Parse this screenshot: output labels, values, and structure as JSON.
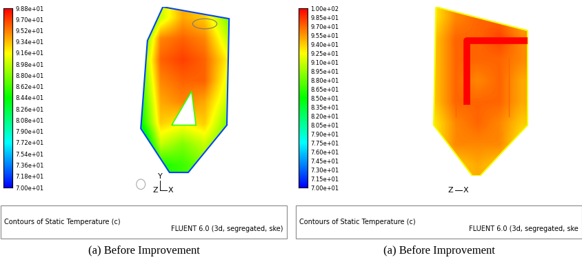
{
  "chart_data": [
    {
      "type": "contour",
      "caption": "(a) Before Improvement",
      "title": "Contours of Static Temperature (c)",
      "solver": "FLUENT 6.0 (3d, segregated, ske)",
      "triad": {
        "up": "Y",
        "out": "Z",
        "right": "X"
      },
      "colorbar": {
        "range": [
          70,
          98.8
        ],
        "ticks": [
          {
            "value": 98.8,
            "label": "9.88e+01"
          },
          {
            "value": 97.0,
            "label": "9.70e+01"
          },
          {
            "value": 95.2,
            "label": "9.52e+01"
          },
          {
            "value": 93.4,
            "label": "9.34e+01"
          },
          {
            "value": 91.6,
            "label": "9.16e+01"
          },
          {
            "value": 89.8,
            "label": "8.98e+01"
          },
          {
            "value": 88.0,
            "label": "8.80e+01"
          },
          {
            "value": 86.2,
            "label": "8.62e+01"
          },
          {
            "value": 84.4,
            "label": "8.44e+01"
          },
          {
            "value": 82.6,
            "label": "8.26e+01"
          },
          {
            "value": 80.8,
            "label": "8.08e+01"
          },
          {
            "value": 79.0,
            "label": "7.90e+01"
          },
          {
            "value": 77.2,
            "label": "7.72e+01"
          },
          {
            "value": 75.4,
            "label": "7.54e+01"
          },
          {
            "value": 73.6,
            "label": "7.36e+01"
          },
          {
            "value": 71.8,
            "label": "7.18e+01"
          },
          {
            "value": 70,
            "label": "7.00e+01"
          }
        ]
      },
      "cells": [
        [
          80,
          90,
          94,
          93,
          88
        ],
        [
          84,
          95,
          96,
          95,
          90
        ],
        [
          86,
          96,
          97,
          96,
          92
        ],
        [
          85,
          95,
          96,
          96,
          91
        ],
        [
          84,
          94,
          95,
          94,
          90
        ],
        [
          83,
          93,
          92,
          93,
          88
        ],
        [
          78,
          90,
          88,
          90,
          87
        ],
        [
          72,
          85,
          86,
          88,
          85
        ]
      ]
    },
    {
      "type": "contour",
      "caption": "(a) Before Improvement",
      "title": "Contours of Static Temperature (c)",
      "solver": "FLUENT 6.0 (3d, segregated, ske",
      "triad": {
        "out": "Z",
        "right": "X"
      },
      "colorbar": {
        "range": [
          70,
          100
        ],
        "ticks": [
          {
            "value": 100,
            "label": "1.00e+02"
          },
          {
            "value": 98.5,
            "label": "9.85e+01"
          },
          {
            "value": 97.0,
            "label": "9.70e+01"
          },
          {
            "value": 95.5,
            "label": "9.55e+01"
          },
          {
            "value": 94.0,
            "label": "9.40e+01"
          },
          {
            "value": 92.5,
            "label": "9.25e+01"
          },
          {
            "value": 91.0,
            "label": "9.10e+01"
          },
          {
            "value": 89.5,
            "label": "8.95e+01"
          },
          {
            "value": 88.0,
            "label": "8.80e+01"
          },
          {
            "value": 86.5,
            "label": "8.65e+01"
          },
          {
            "value": 85.0,
            "label": "8.50e+01"
          },
          {
            "value": 83.5,
            "label": "8.35e+01"
          },
          {
            "value": 82.0,
            "label": "8.20e+01"
          },
          {
            "value": 80.5,
            "label": "8.05e+01"
          },
          {
            "value": 79.0,
            "label": "7.90e+01"
          },
          {
            "value": 77.5,
            "label": "7.75e+01"
          },
          {
            "value": 76.0,
            "label": "7.60e+01"
          },
          {
            "value": 74.5,
            "label": "7.45e+01"
          },
          {
            "value": 73.0,
            "label": "7.30e+01"
          },
          {
            "value": 71.5,
            "label": "7.15e+01"
          },
          {
            "value": 70,
            "label": "7.00e+01"
          }
        ]
      },
      "cells": [
        [
          93,
          96,
          97,
          97,
          95
        ],
        [
          94,
          97,
          97,
          98,
          96
        ],
        [
          94,
          97,
          97,
          97,
          96
        ],
        [
          94,
          97,
          96,
          97,
          95
        ],
        [
          94,
          97,
          97,
          97,
          95
        ],
        [
          93,
          96,
          97,
          96,
          94
        ],
        [
          93,
          96,
          96,
          96,
          93
        ],
        [
          92,
          94,
          95,
          94,
          92
        ]
      ]
    }
  ]
}
